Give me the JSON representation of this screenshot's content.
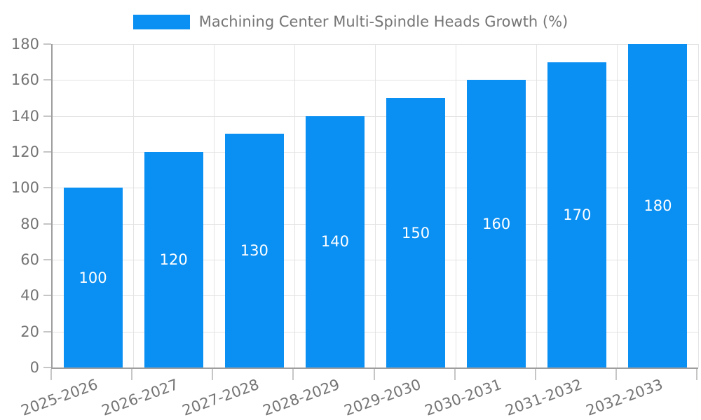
{
  "page": {
    "background": "#ffffff"
  },
  "legend": {
    "position": "top-center",
    "items": [
      {
        "label": "Machining Center Multi-Spindle Heads Growth (%)",
        "swatch_color": "#0a8ff2"
      }
    ]
  },
  "chart_data": {
    "type": "bar",
    "title": "Machining Center Multi-Spindle Heads Growth (%)",
    "series": [
      {
        "name": "Machining Center Multi-Spindle Heads Growth (%)",
        "values": [
          100,
          120,
          130,
          140,
          150,
          160,
          170,
          180
        ]
      }
    ],
    "categories": [
      "2025-2026",
      "2026-2027",
      "2027-2028",
      "2028-2029",
      "2029-2030",
      "2030-2031",
      "2031-2032",
      "2032-2033"
    ],
    "data_labels": [
      "100",
      "120",
      "130",
      "140",
      "150",
      "160",
      "170",
      "180"
    ],
    "xlabel": "",
    "ylabel": "",
    "ylim": [
      0,
      180
    ],
    "yticks": [
      0,
      20,
      40,
      60,
      80,
      100,
      120,
      140,
      160,
      180
    ],
    "grid": true,
    "legend_position": "top",
    "bar_color": "#0a8ff2",
    "data_label_color": "#ffffff"
  },
  "style": {
    "grid_color": "#e3e3e3",
    "axis_color": "#9e9e9e",
    "tick_color": "#c6c6c6",
    "tick_label_color": "#757575",
    "legend_text_color": "#757575"
  }
}
